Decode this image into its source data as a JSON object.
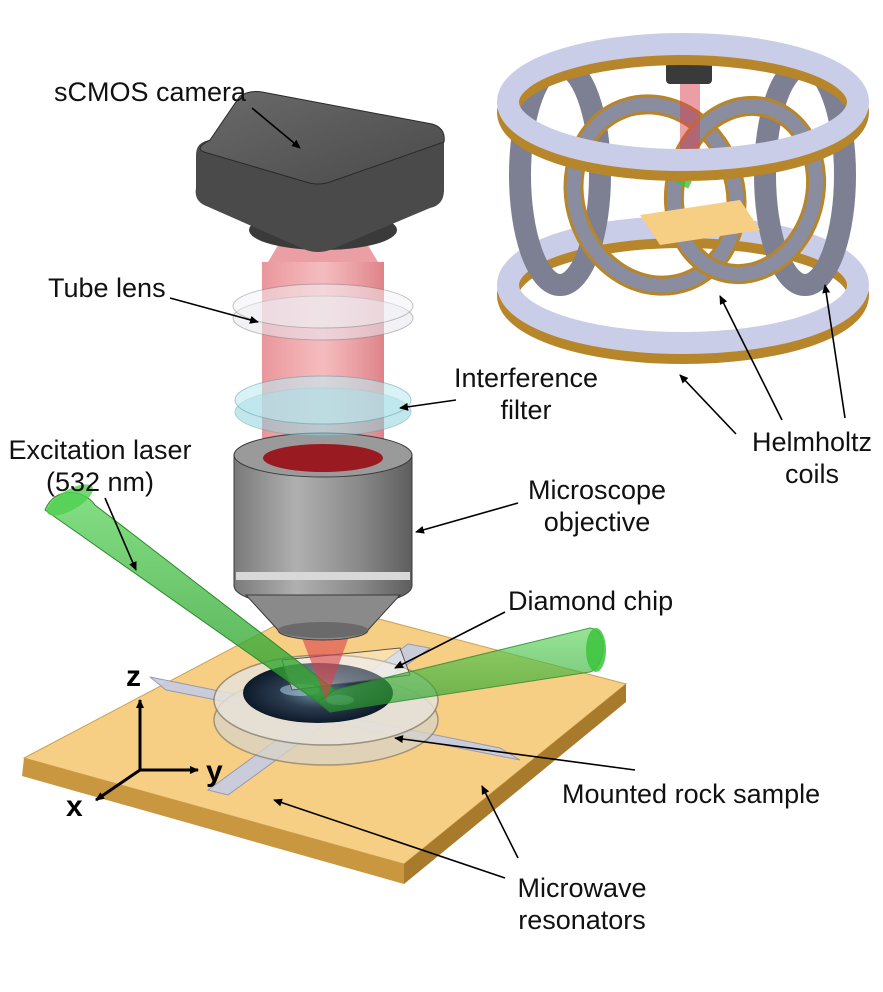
{
  "labels": {
    "camera": "sCMOS camera",
    "tube_lens": "Tube lens",
    "interference_filter": [
      "Interference",
      "filter"
    ],
    "excitation_laser": [
      "Excitation laser",
      "(532 nm)"
    ],
    "microscope_objective": [
      "Microscope",
      "objective"
    ],
    "diamond_chip": "Diamond chip",
    "mounted_rock_sample": "Mounted rock sample",
    "microwave_resonators": [
      "Microwave",
      "resonators"
    ],
    "helmholtz_coils": [
      "Helmholtz",
      "coils"
    ]
  },
  "axes": {
    "z": "z",
    "y": "y",
    "x": "x"
  },
  "colors": {
    "laser_green": "#3cc43c",
    "fluorescence_red": "#d8404a",
    "camera_gray": "#4a4a4a",
    "board_gold": "#f7cf84",
    "coil_lavender": "#c9cde8",
    "coil_copper": "#b8862a"
  }
}
